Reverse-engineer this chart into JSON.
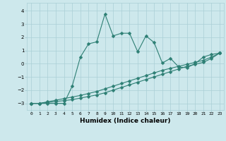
{
  "xlabel": "Humidex (Indice chaleur)",
  "background_color": "#cde8ec",
  "grid_color": "#aacfd6",
  "line_color": "#2d7f74",
  "xlim": [
    -0.5,
    23.5
  ],
  "ylim": [
    -3.5,
    4.6
  ],
  "yticks": [
    -3,
    -2,
    -1,
    0,
    1,
    2,
    3,
    4
  ],
  "xticks": [
    0,
    1,
    2,
    3,
    4,
    5,
    6,
    7,
    8,
    9,
    10,
    11,
    12,
    13,
    14,
    15,
    16,
    17,
    18,
    19,
    20,
    21,
    22,
    23
  ],
  "curve1_x": [
    0,
    1,
    2,
    3,
    4,
    5,
    6,
    7,
    8,
    9,
    10,
    11,
    12,
    13,
    14,
    15,
    16,
    17,
    18,
    19,
    20,
    21,
    22,
    23
  ],
  "curve1_y": [
    -3.0,
    -3.0,
    -3.0,
    -3.0,
    -3.0,
    -1.7,
    0.5,
    1.5,
    1.65,
    3.75,
    2.1,
    2.3,
    2.3,
    0.9,
    2.1,
    1.6,
    0.05,
    0.4,
    -0.25,
    -0.3,
    0.0,
    0.5,
    0.7,
    0.8
  ],
  "curve2_x": [
    0,
    1,
    2,
    3,
    4,
    5,
    6,
    7,
    8,
    9,
    10,
    11,
    12,
    13,
    14,
    15,
    16,
    17,
    18,
    19,
    20,
    21,
    22,
    23
  ],
  "curve2_y": [
    -3.0,
    -3.0,
    -2.88,
    -2.76,
    -2.64,
    -2.52,
    -2.4,
    -2.25,
    -2.1,
    -1.9,
    -1.7,
    -1.5,
    -1.3,
    -1.1,
    -0.9,
    -0.7,
    -0.5,
    -0.35,
    -0.2,
    -0.05,
    0.1,
    0.25,
    0.5,
    0.8
  ],
  "curve3_x": [
    0,
    1,
    2,
    3,
    4,
    5,
    6,
    7,
    8,
    9,
    10,
    11,
    12,
    13,
    14,
    15,
    16,
    17,
    18,
    19,
    20,
    21,
    22,
    23
  ],
  "curve3_y": [
    -3.0,
    -3.0,
    -2.93,
    -2.86,
    -2.79,
    -2.72,
    -2.6,
    -2.48,
    -2.36,
    -2.2,
    -2.0,
    -1.8,
    -1.6,
    -1.4,
    -1.2,
    -1.0,
    -0.8,
    -0.6,
    -0.4,
    -0.2,
    -0.05,
    0.1,
    0.4,
    0.8
  ],
  "marker": "D",
  "marker_size": 2.5,
  "linewidth": 0.8,
  "xlabel_fontsize": 6.5,
  "tick_fontsize": 5.0,
  "tick_fontsize_x": 4.5
}
